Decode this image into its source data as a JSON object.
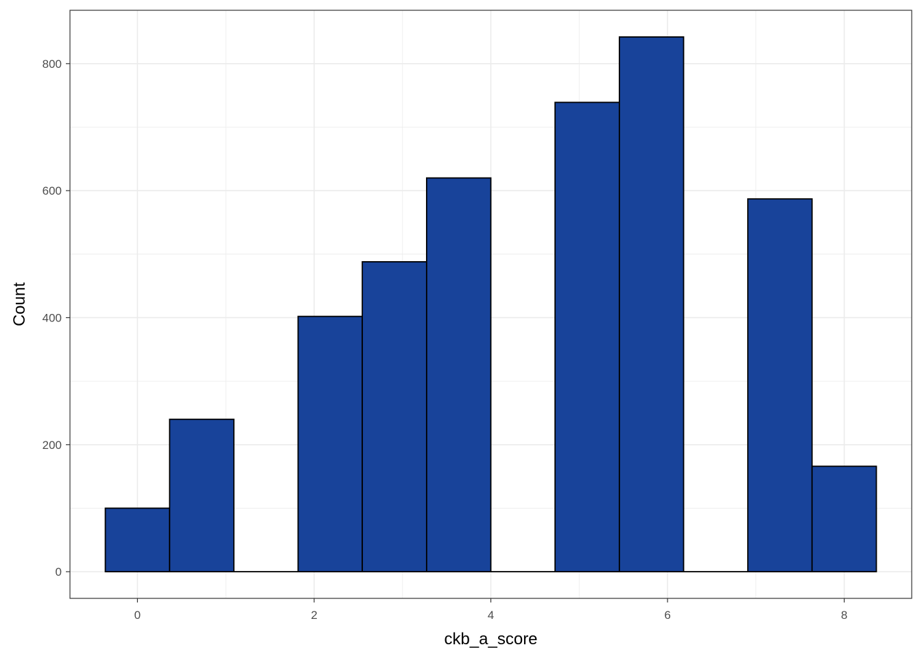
{
  "chart_data": {
    "type": "bar",
    "xlabel": "ckb_a_score",
    "ylabel": "Count",
    "bins": [
      {
        "x0": -0.364,
        "x1": 0.364,
        "count": 100
      },
      {
        "x0": 0.364,
        "x1": 1.091,
        "count": 240
      },
      {
        "x0": 1.091,
        "x1": 1.818,
        "count": 0
      },
      {
        "x0": 1.818,
        "x1": 2.545,
        "count": 402
      },
      {
        "x0": 2.545,
        "x1": 3.273,
        "count": 488
      },
      {
        "x0": 3.273,
        "x1": 4.0,
        "count": 620
      },
      {
        "x0": 4.0,
        "x1": 4.727,
        "count": 0
      },
      {
        "x0": 4.727,
        "x1": 5.455,
        "count": 739
      },
      {
        "x0": 5.455,
        "x1": 6.182,
        "count": 842
      },
      {
        "x0": 6.182,
        "x1": 6.909,
        "count": 0
      },
      {
        "x0": 6.909,
        "x1": 7.636,
        "count": 587
      },
      {
        "x0": 7.636,
        "x1": 8.364,
        "count": 166
      }
    ],
    "x_ticks": [
      0,
      2,
      4,
      6,
      8
    ],
    "x_tick_labels": [
      "0",
      "2",
      "4",
      "6",
      "8"
    ],
    "y_ticks": [
      0,
      200,
      400,
      600,
      800
    ],
    "y_tick_labels": [
      "0",
      "200",
      "400",
      "600",
      "800"
    ],
    "xlim": [
      -0.764,
      8.764
    ],
    "ylim": [
      -42,
      884
    ],
    "grid": true,
    "bar_fill": "#18439A",
    "bar_stroke": "#000000",
    "grid_color": "#EBEBEB"
  }
}
